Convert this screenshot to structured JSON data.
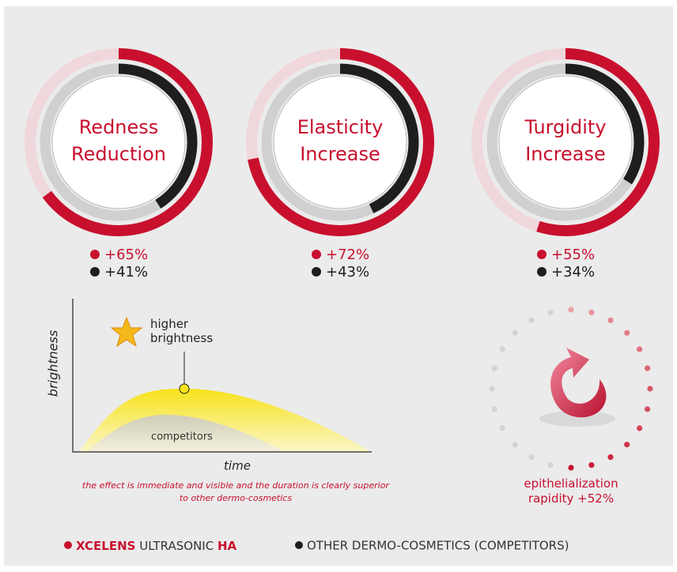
{
  "gauges": [
    {
      "label": [
        "Redness",
        "Reduction"
      ],
      "values": [
        65,
        41
      ],
      "value_labels": [
        "+65%",
        "+41%"
      ]
    },
    {
      "label": [
        "Elasticity",
        "Increase"
      ],
      "values": [
        72,
        43
      ],
      "value_labels": [
        "+72%",
        "+43%"
      ]
    },
    {
      "label": [
        "Turgidity",
        "Increase"
      ],
      "values": [
        55,
        34
      ],
      "value_labels": [
        "+55%",
        "+34%"
      ]
    }
  ],
  "colors": {
    "xcelens": "#c8102e",
    "competitors": "#1e1e1e"
  },
  "brightness_chart": {
    "y_label": "brightness",
    "x_label": "time",
    "highlight": [
      "higher",
      "brightness"
    ],
    "competitors": "competitors",
    "caption": [
      "the effect is immediate and visible and the duration is clearly superior",
      "to other dermo-cosmetics"
    ]
  },
  "epithelialization": [
    "epithelialization",
    "rapidity +52%"
  ],
  "legend": {
    "brand": "XCELENS",
    "product": "ULTRASONIC",
    "suffix": "HA",
    "other": "OTHER DERMO-COSMETICS (COMPETITORS)"
  }
}
